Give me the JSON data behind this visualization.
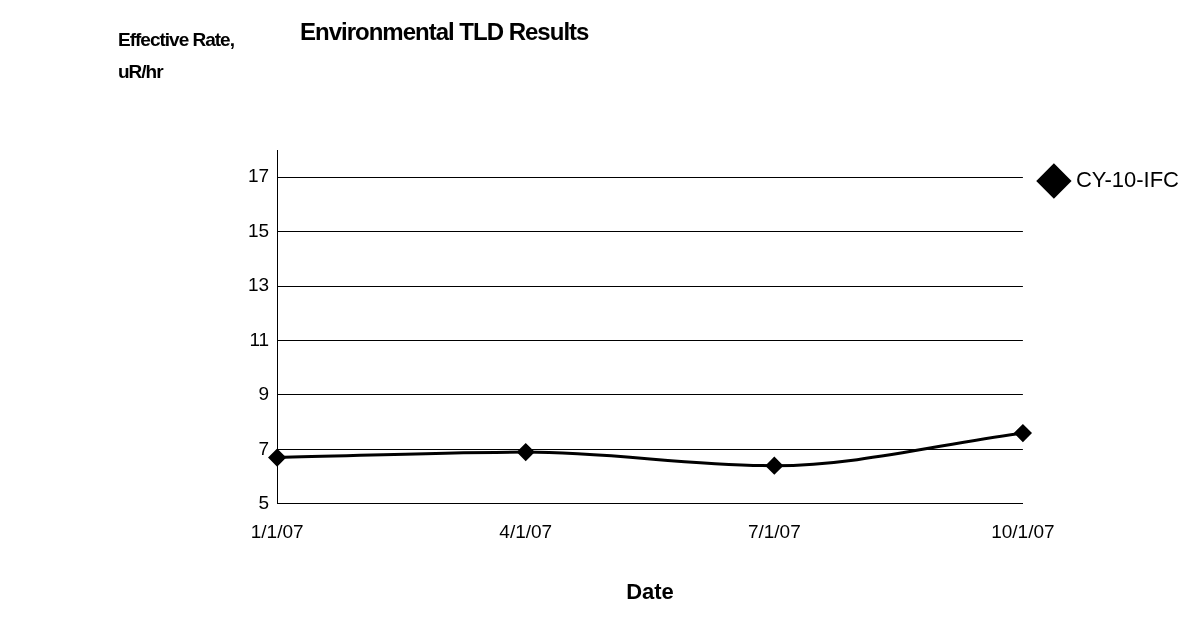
{
  "chart_data": {
    "type": "line",
    "title": "Environmental TLD Results",
    "xlabel": "Date",
    "ylabel": "Effective Rate, uR/hr",
    "categories": [
      "1/1/07",
      "4/1/07",
      "7/1/07",
      "10/1/07"
    ],
    "series": [
      {
        "name": "CY-10-IFC",
        "color": "#000000",
        "values": [
          6.7,
          6.9,
          6.4,
          7.6
        ]
      }
    ],
    "ylim": [
      5,
      18
    ],
    "yticks": [
      5,
      7,
      9,
      11,
      13,
      15,
      17
    ],
    "grid": "y",
    "legend": "right",
    "marker": "diamond",
    "line_style": "solid"
  }
}
